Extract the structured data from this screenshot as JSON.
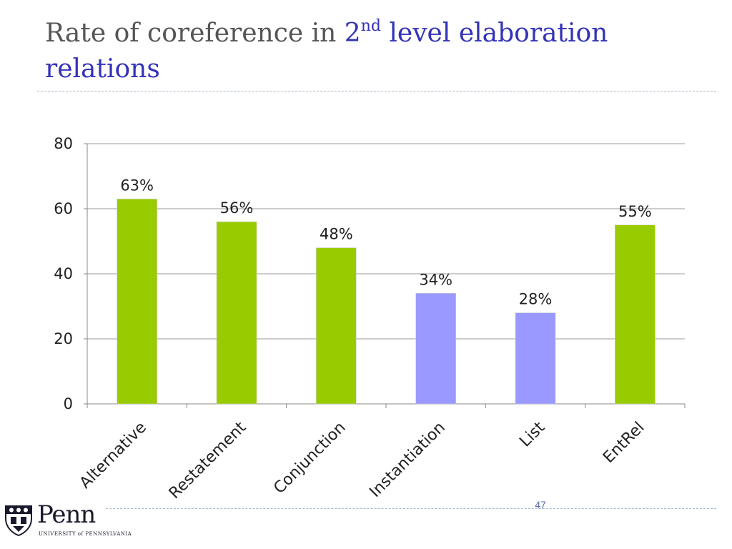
{
  "slide": {
    "title_plain": "Rate of coreference in ",
    "title_accent_prefix": "2",
    "title_accent_sup": "nd",
    "title_accent_rest": " level elaboration relations",
    "page_number": "47"
  },
  "logo": {
    "word": "Penn",
    "subtitle": "UNIVERSITY of PENNSYLVANIA"
  },
  "colors": {
    "title_text": "#555555",
    "title_accent": "#3333b8",
    "bar_green": "#99cc00",
    "bar_blue": "#9999ff",
    "grid": "#999999"
  },
  "chart_data": {
    "type": "bar",
    "categories": [
      "Alternative",
      "Restatement",
      "Conjunction",
      "Instantiation",
      "List",
      "EntRel"
    ],
    "values": [
      63,
      56,
      48,
      34,
      28,
      55
    ],
    "data_labels": [
      "63%",
      "56%",
      "48%",
      "34%",
      "28%",
      "55%"
    ],
    "bar_colors": [
      "#99cc00",
      "#99cc00",
      "#99cc00",
      "#9999ff",
      "#9999ff",
      "#99cc00"
    ],
    "ylim": [
      0,
      80
    ],
    "yticks": [
      0,
      20,
      40,
      60,
      80
    ],
    "grid": true,
    "legend": "none"
  }
}
